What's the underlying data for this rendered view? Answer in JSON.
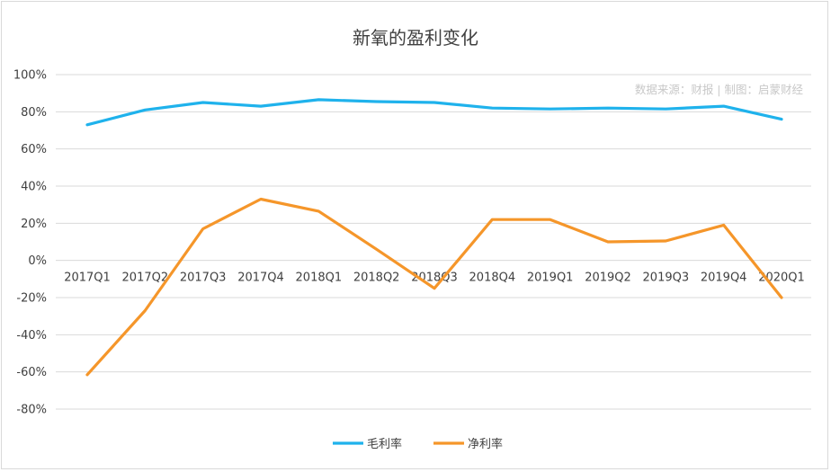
{
  "chart_data": {
    "type": "line",
    "title": "新氧的盈利变化",
    "source_note": "数据来源：财报 | 制图：启蒙财经",
    "categories": [
      "2017Q1",
      "2017Q2",
      "2017Q3",
      "2017Q4",
      "2018Q1",
      "2018Q2",
      "2018Q3",
      "2018Q4",
      "2019Q1",
      "2019Q2",
      "2019Q3",
      "2019Q4",
      "2020Q1"
    ],
    "series": [
      {
        "name": "毛利率",
        "color": "#1fb2ec",
        "values": [
          73,
          81,
          85,
          83,
          86.5,
          85.5,
          85,
          82,
          81.5,
          82,
          81.5,
          83,
          76
        ]
      },
      {
        "name": "净利率",
        "color": "#f5962a",
        "values": [
          -61.5,
          -27,
          17,
          33,
          26.5,
          6,
          -15,
          22,
          22,
          10,
          10.5,
          19,
          -20
        ]
      }
    ],
    "y_ticks": [
      "100%",
      "80%",
      "60%",
      "40%",
      "20%",
      "0%",
      "-20%",
      "-40%",
      "-60%",
      "-80%"
    ],
    "ylim": [
      -80,
      100
    ],
    "grid": true,
    "legend": "bottom-center"
  }
}
